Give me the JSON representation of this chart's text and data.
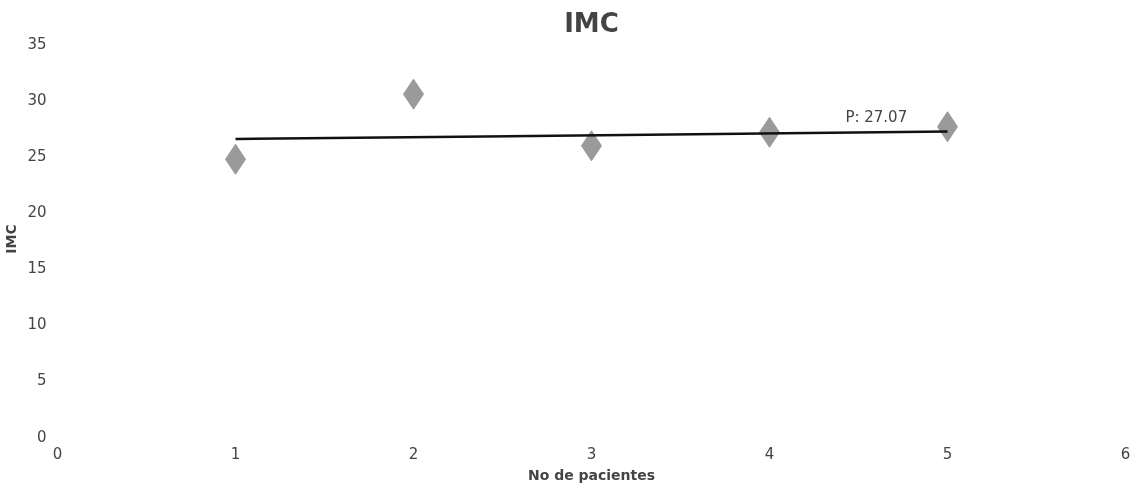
{
  "chart_data": {
    "type": "scatter",
    "title": "IMC",
    "xlabel": "No de pacientes",
    "ylabel": "IMC",
    "grid": false,
    "xlim": [
      0,
      6
    ],
    "xticks": [
      0,
      1,
      2,
      3,
      4,
      5,
      6
    ],
    "ylim": [
      0,
      35
    ],
    "yticks": [
      0,
      5,
      10,
      15,
      20,
      25,
      30,
      35
    ],
    "series": [
      {
        "color": "#9a9a9a",
        "marker": "diamond",
        "x": [
          1,
          2,
          3,
          4,
          5
        ],
        "values": [
          24.6,
          30.4,
          25.8,
          27,
          27.5
        ]
      },
      {
        "type": "line",
        "marker": "none",
        "color": "#111111",
        "x": [
          1,
          5
        ],
        "values": [
          26.4,
          27.07
        ]
      }
    ],
    "annotations": [
      {
        "text": "P: 27.07",
        "x": 4.6,
        "y": 27.07
      }
    ]
  }
}
